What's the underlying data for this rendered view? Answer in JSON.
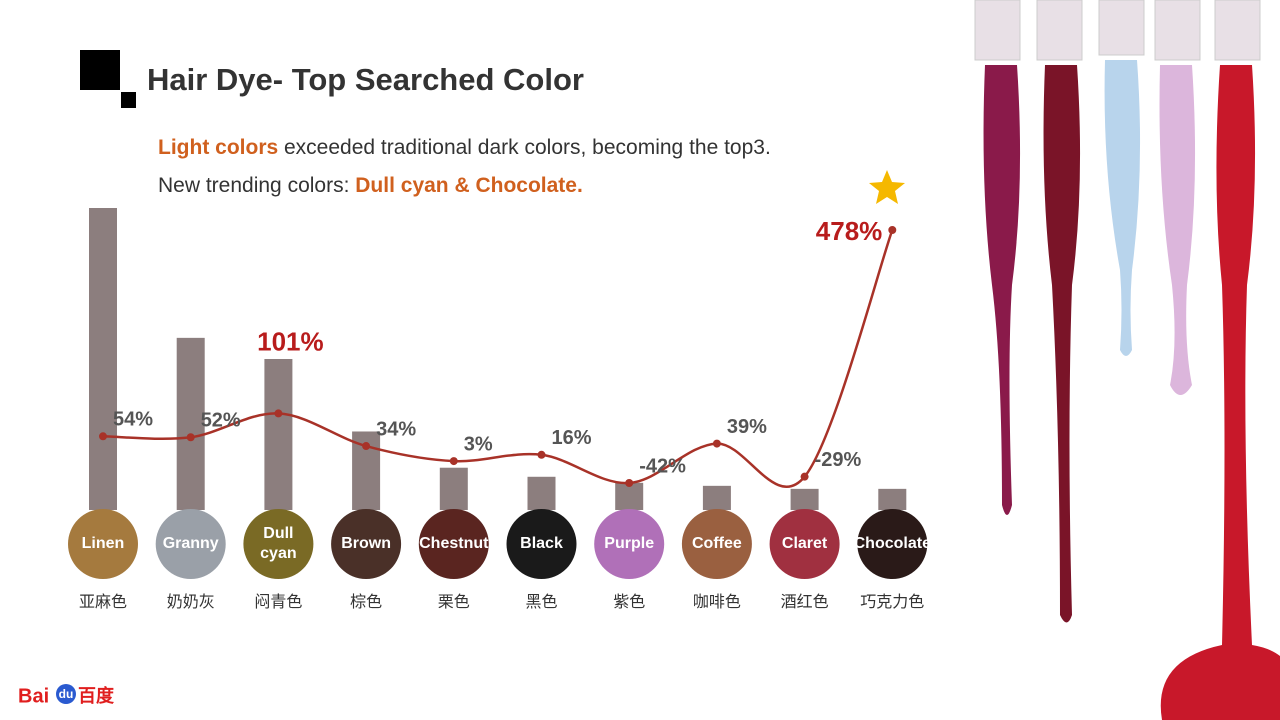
{
  "chart_data": {
    "type": "bar-line",
    "title": "Hair Dye- Top Searched Color",
    "subtitle_lines": [
      [
        {
          "text": "Light colors",
          "emphasis": true
        },
        {
          "text": " exceeded traditional dark colors, becoming the top3.",
          "emphasis": false
        }
      ],
      [
        {
          "text": "New trending colors: ",
          "emphasis": false
        },
        {
          "text": "Dull cyan & Chocolate.",
          "emphasis": true
        }
      ]
    ],
    "categories": [
      "Linen",
      "Granny",
      "Dull cyan",
      "Brown",
      "Chestnut",
      "Black",
      "Purple",
      "Coffee",
      "Claret",
      "Chocolate"
    ],
    "category_labels_cn": [
      "亚麻色",
      "奶奶灰",
      "闷青色",
      "棕色",
      "栗色",
      "黑色",
      "紫色",
      "咖啡色",
      "酒红色",
      "巧克力色"
    ],
    "swatch_colors": [
      "#a57a3e",
      "#9aa0a8",
      "#7a6a25",
      "#4a3028",
      "#5a2520",
      "#1a1a1a",
      "#b070b8",
      "#9a6040",
      "#a03040",
      "#2a1a18"
    ],
    "series": [
      {
        "type": "bar",
        "color": "#8c7e7e",
        "values": [
          100,
          57,
          50,
          26,
          14,
          11,
          9,
          8,
          7,
          7
        ]
      },
      {
        "type": "line",
        "axis": "y2",
        "color": "#a83228",
        "values": [
          54,
          52,
          101,
          34,
          3,
          16,
          -42,
          39,
          -29,
          478
        ],
        "value_labels": [
          "54%",
          "52%",
          "101%",
          "34%",
          "3%",
          "16%",
          "-42%",
          "39%",
          "-29%",
          "478%"
        ],
        "label_emphasis": [
          false,
          false,
          true,
          false,
          false,
          false,
          false,
          false,
          false,
          true
        ]
      }
    ]
  },
  "logo": [
    "Bai",
    "du",
    "百度"
  ]
}
